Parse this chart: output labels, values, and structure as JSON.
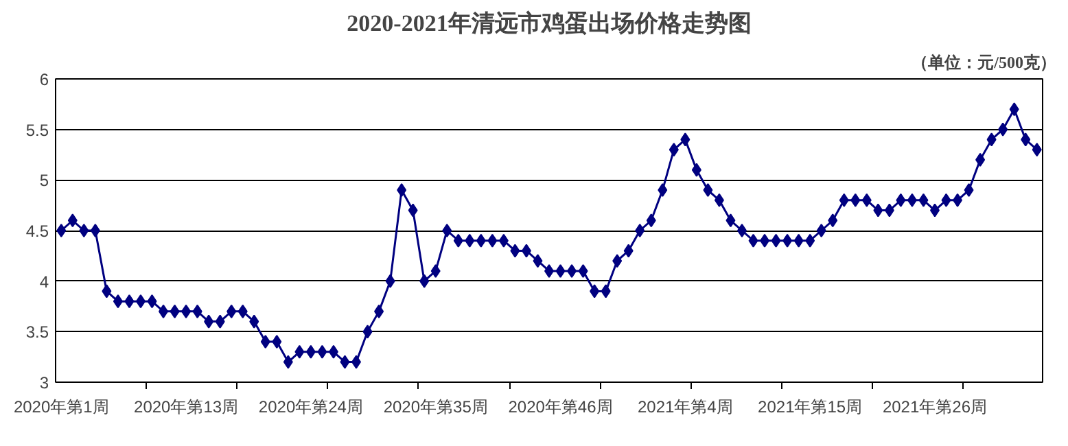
{
  "chart_data": {
    "type": "line",
    "title": "2020-2021年清远市鸡蛋出场价格走势图",
    "annotations": [
      "（单位：元/500克）"
    ],
    "categories": [
      "2020年第1周",
      null,
      null,
      null,
      null,
      null,
      null,
      null,
      null,
      null,
      null,
      "2020年第13周",
      null,
      null,
      null,
      null,
      null,
      null,
      null,
      null,
      null,
      null,
      "2020年第24周",
      null,
      null,
      null,
      null,
      null,
      null,
      null,
      null,
      null,
      null,
      "2020年第35周",
      null,
      null,
      null,
      null,
      null,
      null,
      null,
      null,
      null,
      null,
      "2020年第46周",
      null,
      null,
      null,
      null,
      null,
      null,
      null,
      null,
      null,
      null,
      "2021年第4周",
      null,
      null,
      null,
      null,
      null,
      null,
      null,
      null,
      null,
      null,
      "2021年第15周",
      null,
      null,
      null,
      null,
      null,
      null,
      null,
      null,
      null,
      null,
      "2021年第26周",
      null,
      null,
      null,
      null,
      null,
      null,
      null,
      null,
      null
    ],
    "series": [
      {
        "color": "#000080",
        "values": [
          4.5,
          4.6,
          4.5,
          4.5,
          3.9,
          3.8,
          3.8,
          3.8,
          3.8,
          3.7,
          3.7,
          3.7,
          3.7,
          3.6,
          3.6,
          3.7,
          3.7,
          3.6,
          3.4,
          3.4,
          3.2,
          3.3,
          3.3,
          3.3,
          3.3,
          3.2,
          3.2,
          3.5,
          3.7,
          4.0,
          4.9,
          4.7,
          4.0,
          4.1,
          4.5,
          4.4,
          4.4,
          4.4,
          4.4,
          4.4,
          4.3,
          4.3,
          4.2,
          4.1,
          4.1,
          4.1,
          4.1,
          3.9,
          3.9,
          4.2,
          4.3,
          4.5,
          4.6,
          4.9,
          5.3,
          5.4,
          5.1,
          4.9,
          4.8,
          4.6,
          4.5,
          4.4,
          4.4,
          4.4,
          4.4,
          4.4,
          4.4,
          4.5,
          4.6,
          4.8,
          4.8,
          4.8,
          4.7,
          4.7,
          4.8,
          4.8,
          4.8,
          4.7,
          4.8,
          4.8,
          4.9,
          5.2,
          5.4,
          5.5,
          5.7,
          5.4,
          5.3
        ]
      }
    ],
    "ylim": [
      3,
      6
    ],
    "yticks": [
      3,
      3.5,
      4,
      4.5,
      5,
      5.5,
      6
    ],
    "grid": "y",
    "marker": "diamond",
    "line_style": "solid"
  }
}
